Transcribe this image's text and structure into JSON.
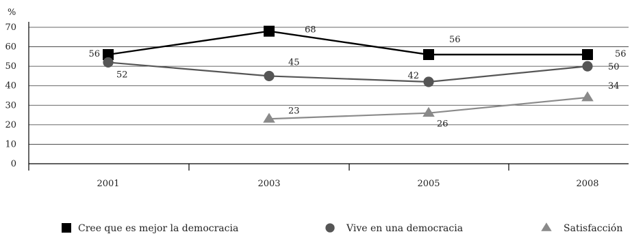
{
  "chart_data": {
    "type": "line",
    "unit_label": "%",
    "categories": [
      "2001",
      "2003",
      "2005",
      "2008"
    ],
    "ylim": [
      0,
      70
    ],
    "yticks": [
      0,
      10,
      20,
      30,
      40,
      50,
      60,
      70
    ],
    "grid": true,
    "legend_position": "bottom",
    "series": [
      {
        "name": "Cree que es mejor la democracia",
        "marker": "square",
        "color": "#000000",
        "values": [
          56,
          68,
          56,
          56
        ],
        "labels": [
          "56",
          "68",
          "56",
          "56"
        ]
      },
      {
        "name": "Vive en una democracia",
        "marker": "circle",
        "color": "#555555",
        "values": [
          52,
          45,
          42,
          50
        ],
        "labels": [
          "52",
          "45",
          "42",
          "50"
        ]
      },
      {
        "name": "Satisfacción",
        "marker": "triangle",
        "color": "#8a8a8a",
        "values": [
          null,
          23,
          26,
          34
        ],
        "labels": [
          null,
          "23",
          "26",
          "34"
        ]
      }
    ]
  }
}
